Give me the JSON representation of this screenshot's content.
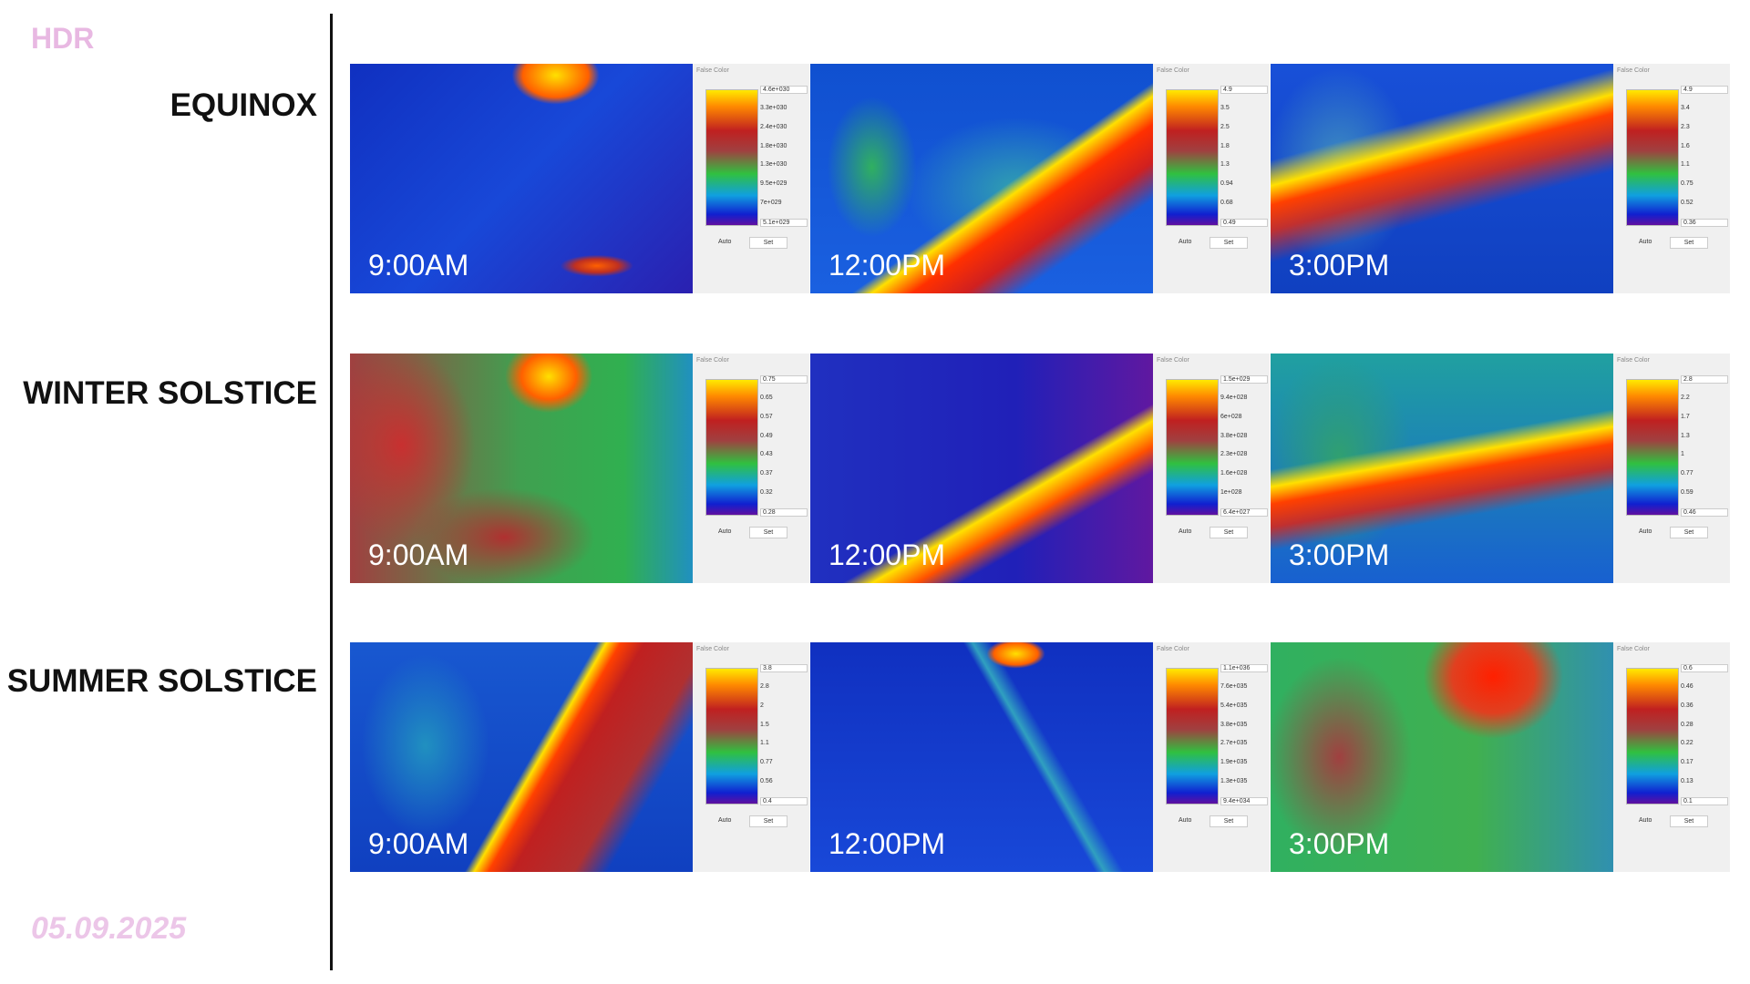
{
  "header": {
    "title": "HDR",
    "date": "05.09.2025"
  },
  "legend_ui": {
    "title": "False Color",
    "auto": "Auto",
    "set": "Set"
  },
  "rows": [
    {
      "label": "EQUINOX",
      "panels": [
        {
          "time": "9:00AM",
          "legend": [
            "4.6e+030",
            "3.3e+030",
            "2.4e+030",
            "1.8e+030",
            "1.3e+030",
            "9.5e+029",
            "7e+029",
            "5.1e+029"
          ]
        },
        {
          "time": "12:00PM",
          "legend": [
            "4.9",
            "3.5",
            "2.5",
            "1.8",
            "1.3",
            "0.94",
            "0.68",
            "0.49"
          ]
        },
        {
          "time": "3:00PM",
          "legend": [
            "4.9",
            "3.4",
            "2.3",
            "1.6",
            "1.1",
            "0.75",
            "0.52",
            "0.36"
          ]
        }
      ]
    },
    {
      "label": "WINTER SOLSTICE",
      "panels": [
        {
          "time": "9:00AM",
          "legend": [
            "0.75",
            "0.65",
            "0.57",
            "0.49",
            "0.43",
            "0.37",
            "0.32",
            "0.28"
          ]
        },
        {
          "time": "12:00PM",
          "legend": [
            "1.5e+029",
            "9.4e+028",
            "6e+028",
            "3.8e+028",
            "2.3e+028",
            "1.6e+028",
            "1e+028",
            "6.4e+027"
          ]
        },
        {
          "time": "3:00PM",
          "legend": [
            "2.8",
            "2.2",
            "1.7",
            "1.3",
            "1",
            "0.77",
            "0.59",
            "0.46"
          ]
        }
      ]
    },
    {
      "label": "SUMMER SOLSTICE",
      "panels": [
        {
          "time": "9:00AM",
          "legend": [
            "3.8",
            "2.8",
            "2",
            "1.5",
            "1.1",
            "0.77",
            "0.56",
            "0.4"
          ]
        },
        {
          "time": "12:00PM",
          "legend": [
            "1.1e+036",
            "7.6e+035",
            "5.4e+035",
            "3.8e+035",
            "2.7e+035",
            "1.9e+035",
            "1.3e+035",
            "9.4e+034"
          ]
        },
        {
          "time": "3:00PM",
          "legend": [
            "0.6",
            "0.46",
            "0.36",
            "0.28",
            "0.22",
            "0.17",
            "0.13",
            "0.1"
          ]
        }
      ]
    }
  ]
}
